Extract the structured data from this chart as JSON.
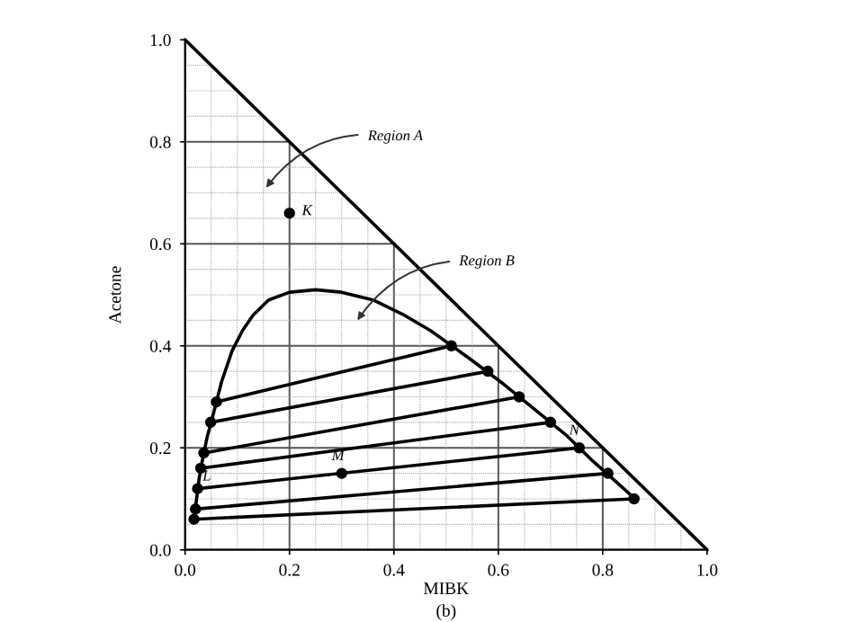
{
  "chart_data": {
    "type": "line",
    "xlabel": "MIBK",
    "ylabel": "Acetone",
    "xlim": [
      0,
      1
    ],
    "ylim": [
      0,
      1
    ],
    "xticks": [
      {
        "value": 0,
        "label": "0.0"
      },
      {
        "value": 0.2,
        "label": "0.2"
      },
      {
        "value": 0.4,
        "label": "0.4"
      },
      {
        "value": 0.6,
        "label": "0.6"
      },
      {
        "value": 0.8,
        "label": "0.8"
      },
      {
        "value": 1,
        "label": "1.0"
      }
    ],
    "yticks": [
      {
        "value": 0,
        "label": "0.0"
      },
      {
        "value": 0.2,
        "label": "0.2"
      },
      {
        "value": 0.4,
        "label": "0.4"
      },
      {
        "value": 0.6,
        "label": "0.6"
      },
      {
        "value": 0.8,
        "label": "0.8"
      },
      {
        "value": 1,
        "label": "1.0"
      }
    ],
    "grid": true,
    "series": [
      {
        "color": "#000000",
        "marker": "none",
        "x": [
          0,
          1
        ],
        "values": [
          1,
          0
        ]
      },
      {
        "color": "#000000",
        "marker": "none",
        "x": [
          0.016,
          0.022,
          0.027,
          0.033,
          0.042,
          0.055,
          0.07,
          0.09,
          0.11,
          0.13,
          0.16,
          0.2,
          0.25,
          0.3,
          0.36,
          0.42,
          0.47,
          0.545,
          0.61,
          0.67,
          0.73,
          0.78,
          0.835,
          0.865
        ],
        "values": [
          0.055,
          0.1,
          0.14,
          0.175,
          0.22,
          0.27,
          0.33,
          0.39,
          0.43,
          0.46,
          0.49,
          0.505,
          0.51,
          0.505,
          0.49,
          0.46,
          0.43,
          0.375,
          0.325,
          0.275,
          0.225,
          0.175,
          0.125,
          0.097
        ]
      },
      {
        "color": "#000000",
        "marker": "circle",
        "x": [
          0.06,
          0.51
        ],
        "values": [
          0.29,
          0.4
        ]
      },
      {
        "color": "#000000",
        "marker": "circle",
        "x": [
          0.049,
          0.58
        ],
        "values": [
          0.25,
          0.35
        ]
      },
      {
        "color": "#000000",
        "marker": "circle",
        "x": [
          0.036,
          0.64
        ],
        "values": [
          0.19,
          0.3
        ]
      },
      {
        "color": "#000000",
        "marker": "circle",
        "x": [
          0.03,
          0.7
        ],
        "values": [
          0.16,
          0.25
        ]
      },
      {
        "color": "#000000",
        "marker": "circle",
        "x": [
          0.024,
          0.755
        ],
        "values": [
          0.12,
          0.2
        ]
      },
      {
        "color": "#000000",
        "marker": "circle",
        "x": [
          0.02,
          0.81
        ],
        "values": [
          0.08,
          0.15
        ]
      },
      {
        "color": "#000000",
        "marker": "circle",
        "x": [
          0.017,
          0.86
        ],
        "values": [
          0.06,
          0.1
        ]
      },
      {
        "type": "scatter",
        "color": "#000000",
        "marker": "circle",
        "x": [
          0.2,
          0.3
        ],
        "values": [
          0.66,
          0.15
        ]
      }
    ],
    "annotations": [
      "Region A",
      "Region B",
      {
        "text": "K",
        "x": 0.2,
        "y": 0.66
      },
      {
        "text": "M",
        "x": 0.3,
        "y": 0.15
      },
      {
        "text": "L",
        "x": 0.024,
        "y": 0.12
      },
      {
        "text": "N",
        "x": 0.755,
        "y": 0.2
      },
      "(b)"
    ]
  }
}
